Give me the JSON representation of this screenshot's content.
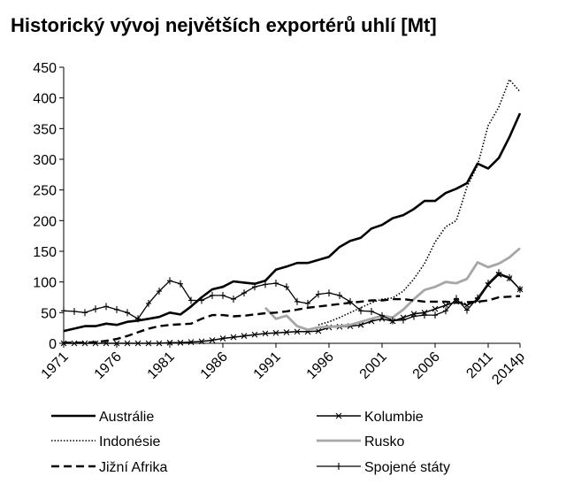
{
  "chart_data": {
    "type": "line",
    "title": "Historický vývoj největších exportérů uhlí [Mt]",
    "xlabel": "",
    "ylabel": "",
    "x": [
      1971,
      1972,
      1973,
      1974,
      1975,
      1976,
      1977,
      1978,
      1979,
      1980,
      1981,
      1982,
      1983,
      1984,
      1985,
      1986,
      1987,
      1988,
      1989,
      1990,
      1991,
      1992,
      1993,
      1994,
      1995,
      1996,
      1997,
      1998,
      1999,
      2000,
      2001,
      2002,
      2003,
      2004,
      2005,
      2006,
      2007,
      2008,
      2009,
      2010,
      2011,
      2012,
      2013,
      2014
    ],
    "x_tick_labels": [
      "1971",
      "1976",
      "1981",
      "1986",
      "1991",
      "1996",
      "2001",
      "2006",
      "2011",
      "2014p"
    ],
    "x_tick_values": [
      1971,
      1976,
      1981,
      1986,
      1991,
      1996,
      2001,
      2006,
      2011,
      2014
    ],
    "ylim": [
      0,
      450
    ],
    "y_ticks": [
      0,
      50,
      100,
      150,
      200,
      250,
      300,
      350,
      400,
      450
    ],
    "grid": false,
    "legend_position": "bottom",
    "series": [
      {
        "name": "Austrálie",
        "color": "#000000",
        "style": "solid-thick",
        "values": [
          20,
          24,
          28,
          28,
          32,
          30,
          35,
          37,
          40,
          43,
          50,
          47,
          60,
          75,
          88,
          92,
          101,
          99,
          97,
          102,
          120,
          125,
          131,
          131,
          136,
          141,
          157,
          167,
          172,
          187,
          193,
          204,
          209,
          219,
          232,
          232,
          245,
          252,
          261,
          293,
          285,
          302,
          336,
          375
        ]
      },
      {
        "name": "Kolumbie",
        "color": "#000000",
        "style": "solid-xmark",
        "values": [
          0,
          0,
          0,
          0,
          0,
          0,
          0,
          0,
          0,
          0,
          1,
          1,
          2,
          3,
          5,
          8,
          10,
          12,
          14,
          16,
          17,
          18,
          19,
          19,
          20,
          26,
          27,
          28,
          30,
          36,
          40,
          36,
          42,
          48,
          50,
          56,
          62,
          68,
          62,
          70,
          95,
          112,
          106,
          88
        ]
      },
      {
        "name": "Indonésie",
        "color": "#000000",
        "style": "dotted",
        "values": [
          null,
          null,
          null,
          null,
          null,
          null,
          null,
          null,
          null,
          null,
          null,
          null,
          null,
          null,
          null,
          null,
          null,
          null,
          null,
          null,
          null,
          null,
          null,
          null,
          30,
          35,
          42,
          50,
          58,
          66,
          72,
          74,
          85,
          105,
          130,
          165,
          190,
          200,
          255,
          290,
          355,
          385,
          430,
          410
        ]
      },
      {
        "name": "Rusko",
        "color": "#a6a6a6",
        "style": "solid-gray",
        "values": [
          null,
          null,
          null,
          null,
          null,
          null,
          null,
          null,
          null,
          null,
          null,
          null,
          null,
          null,
          null,
          null,
          null,
          null,
          null,
          58,
          40,
          45,
          28,
          22,
          26,
          27,
          28,
          30,
          35,
          40,
          45,
          42,
          55,
          72,
          87,
          92,
          100,
          98,
          105,
          132,
          124,
          130,
          140,
          155
        ]
      },
      {
        "name": "Jižní Afrika",
        "color": "#000000",
        "style": "dashed",
        "values": [
          1,
          1,
          1,
          2,
          4,
          7,
          12,
          18,
          24,
          28,
          30,
          31,
          32,
          40,
          46,
          46,
          44,
          45,
          47,
          49,
          50,
          52,
          55,
          58,
          60,
          62,
          64,
          66,
          68,
          70,
          70,
          72,
          72,
          70,
          68,
          68,
          68,
          66,
          67,
          68,
          70,
          75,
          76,
          77
        ]
      },
      {
        "name": "Spojené státy",
        "color": "#000000",
        "style": "solid-plus",
        "values": [
          53,
          52,
          50,
          56,
          60,
          55,
          50,
          40,
          65,
          85,
          102,
          97,
          70,
          70,
          78,
          78,
          72,
          82,
          92,
          96,
          98,
          92,
          68,
          65,
          80,
          82,
          78,
          68,
          53,
          52,
          45,
          37,
          38,
          44,
          46,
          46,
          53,
          73,
          54,
          74,
          98,
          115,
          107,
          88
        ]
      }
    ]
  }
}
